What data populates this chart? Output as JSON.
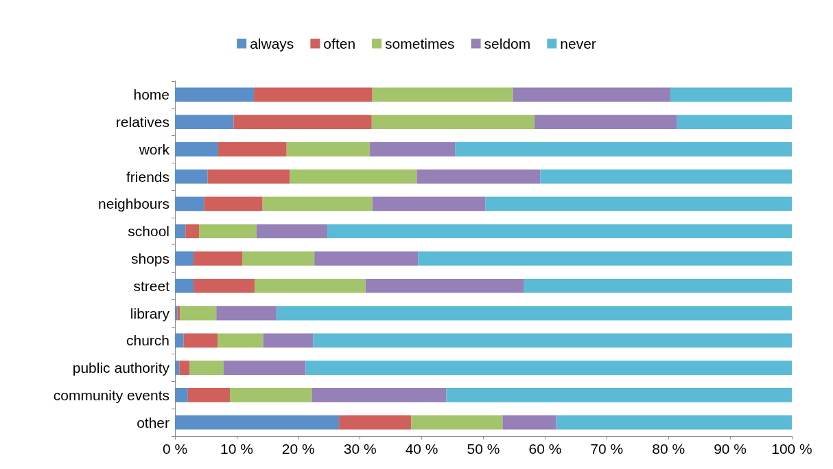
{
  "chart_data": {
    "type": "bar",
    "orientation": "horizontal",
    "stacked": true,
    "legend": "top",
    "grid": false,
    "categories": [
      "home",
      "relatives",
      "work",
      "friends",
      "neighbours",
      "school",
      "shops",
      "street",
      "library",
      "church",
      "public authority",
      "community events",
      "other"
    ],
    "series": [
      {
        "name": "always",
        "color": "#5b8fc9",
        "values": [
          12.8,
          9.5,
          7.0,
          5.3,
          4.7,
          1.7,
          3.0,
          3.0,
          0.4,
          1.4,
          0.7,
          2.1,
          26.6
        ]
      },
      {
        "name": "often",
        "color": "#d0605b",
        "values": [
          19.2,
          22.4,
          11.1,
          13.3,
          9.5,
          2.2,
          7.9,
          9.9,
          0.4,
          5.5,
          1.7,
          6.8,
          11.7
        ]
      },
      {
        "name": "sometimes",
        "color": "#a3c46a",
        "values": [
          22.8,
          26.4,
          13.5,
          20.6,
          17.8,
          9.3,
          11.7,
          18.0,
          5.9,
          7.4,
          5.5,
          13.3,
          14.8
        ]
      },
      {
        "name": "seldom",
        "color": "#9580b8",
        "values": [
          25.5,
          23.1,
          13.8,
          20.0,
          18.3,
          11.5,
          16.8,
          25.7,
          9.8,
          8.1,
          13.3,
          21.8,
          8.7
        ]
      },
      {
        "name": "never",
        "color": "#5bbad5",
        "values": [
          19.7,
          18.6,
          54.6,
          40.8,
          49.7,
          75.3,
          60.6,
          43.4,
          83.5,
          77.6,
          78.8,
          56.0,
          38.2
        ]
      }
    ],
    "xlim": [
      0,
      100
    ],
    "xticks": [
      {
        "value": 0,
        "label": "0 %"
      },
      {
        "value": 10,
        "label": "10 %"
      },
      {
        "value": 20,
        "label": "20 %"
      },
      {
        "value": 30,
        "label": "30 %"
      },
      {
        "value": 40,
        "label": "40 %"
      },
      {
        "value": 50,
        "label": "50 %"
      },
      {
        "value": 60,
        "label": "60 %"
      },
      {
        "value": 70,
        "label": "70 %"
      },
      {
        "value": 80,
        "label": "80 %"
      },
      {
        "value": 90,
        "label": "90 %"
      },
      {
        "value": 100,
        "label": "100 %"
      }
    ]
  }
}
